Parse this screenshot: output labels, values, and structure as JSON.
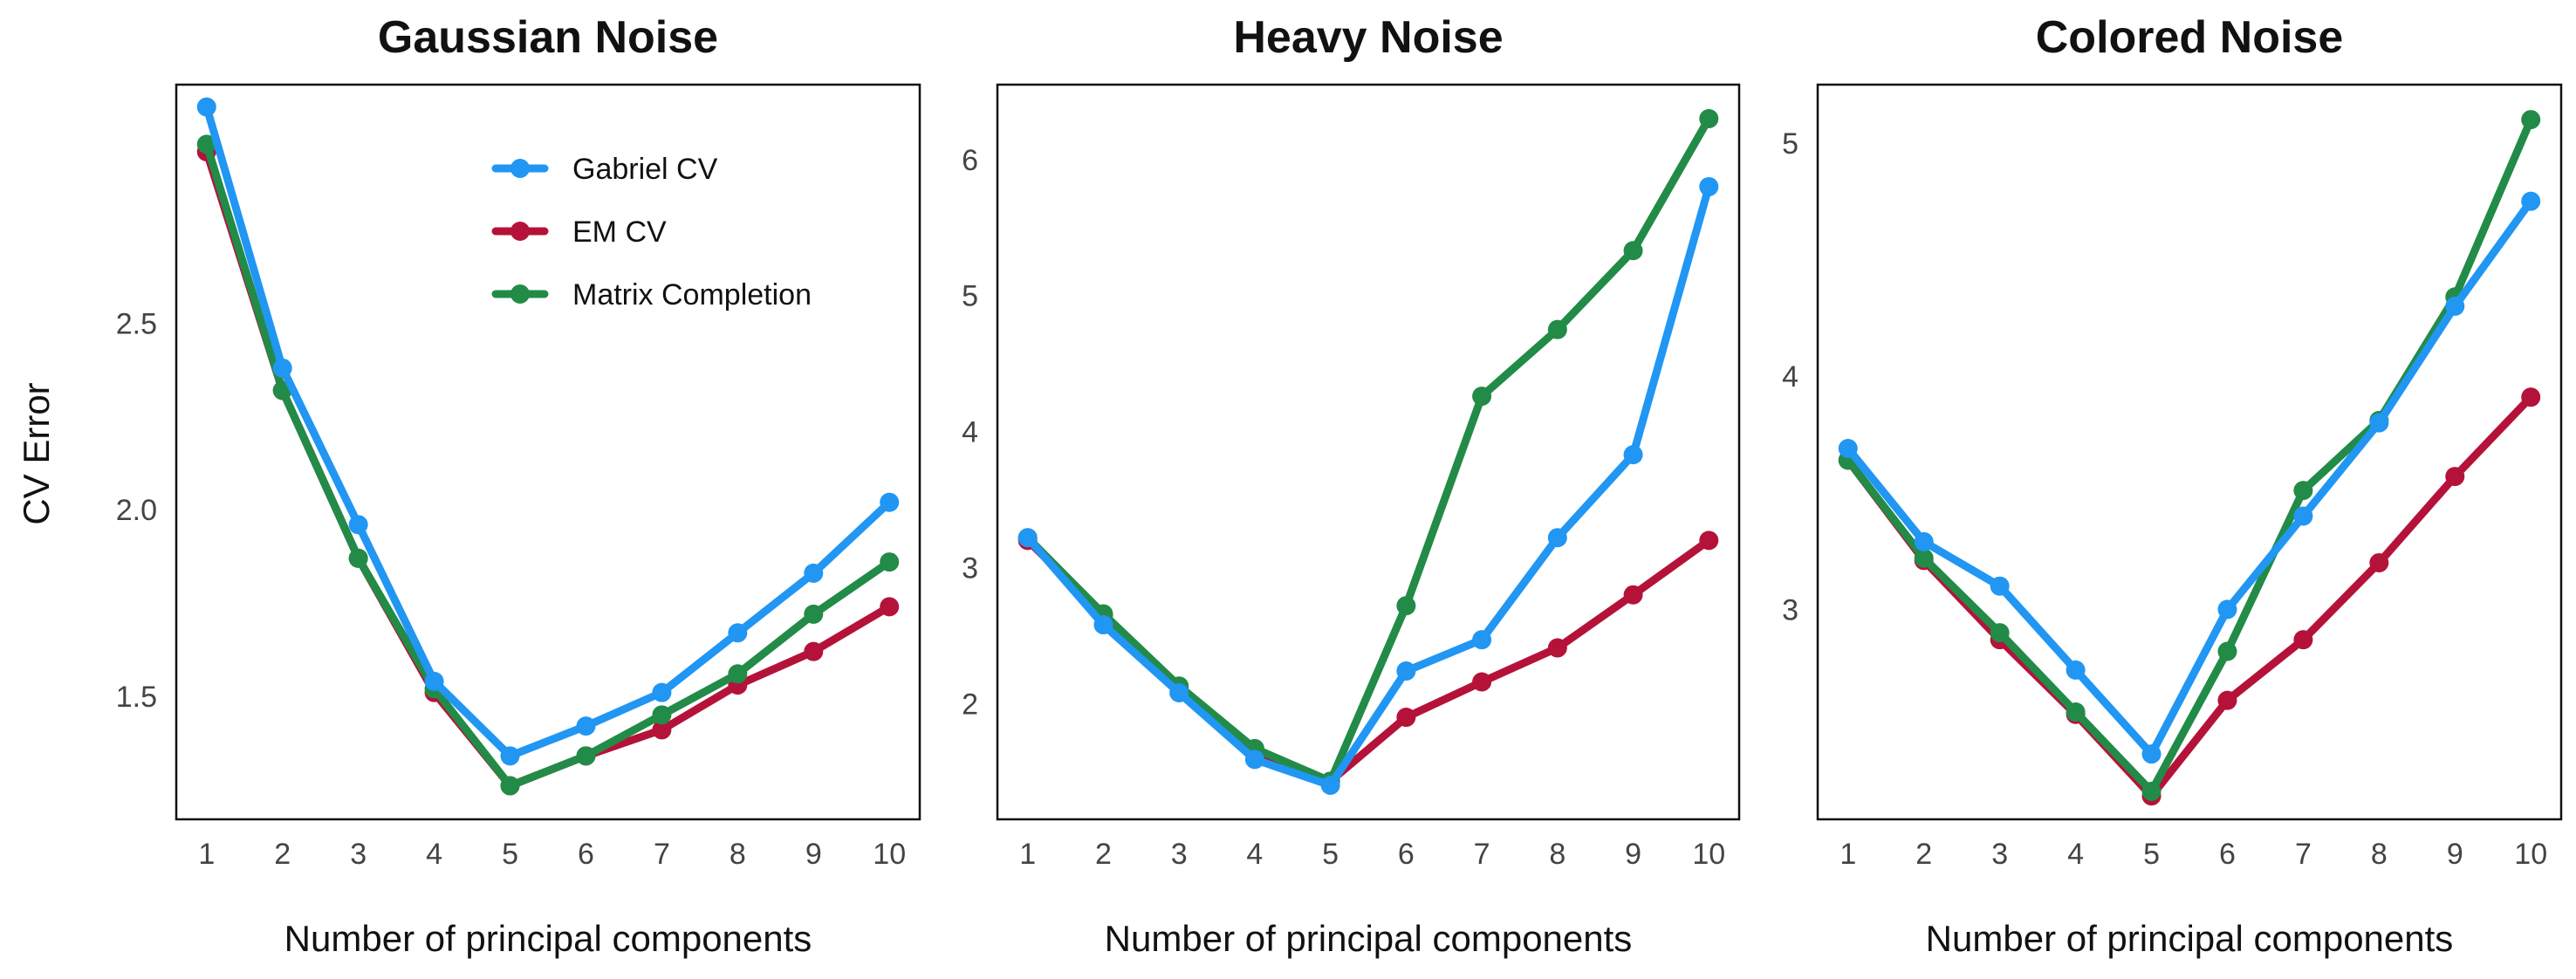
{
  "figure": {
    "ylabel": "CV Error",
    "legend": {
      "placement": "top-right",
      "entries": [
        {
          "name": "Gabriel CV",
          "color": "#2196F3"
        },
        {
          "name": "EM CV",
          "color": "#B5123A"
        },
        {
          "name": "Matrix Completion",
          "color": "#228B47"
        }
      ]
    }
  },
  "chart_data": [
    {
      "type": "line",
      "title": "Gaussian Noise",
      "xlabel": "Number of principal components",
      "ylabel": "CV Error",
      "xlim": [
        0.6,
        10.4
      ],
      "ylim": [
        1.17,
        3.14
      ],
      "x": [
        1,
        2,
        3,
        4,
        5,
        6,
        7,
        8,
        9,
        10
      ],
      "yticks": [
        1.5,
        2.0,
        2.5
      ],
      "ytick_labels": [
        "1.5",
        "2.0",
        "2.5"
      ],
      "grid": false,
      "series": [
        {
          "name": "Gabriel CV",
          "color": "#2196F3",
          "values": [
            3.08,
            2.38,
            1.96,
            1.54,
            1.34,
            1.42,
            1.51,
            1.67,
            1.83,
            2.02
          ]
        },
        {
          "name": "EM CV",
          "color": "#B5123A",
          "values": [
            2.96,
            2.32,
            1.87,
            1.51,
            1.26,
            1.34,
            1.41,
            1.53,
            1.62,
            1.74
          ]
        },
        {
          "name": "Matrix Completion",
          "color": "#228B47",
          "values": [
            2.98,
            2.32,
            1.87,
            1.52,
            1.26,
            1.34,
            1.45,
            1.56,
            1.72,
            1.86
          ]
        }
      ]
    },
    {
      "type": "line",
      "title": "Heavy Noise",
      "xlabel": "Number of principal components",
      "ylabel": "",
      "xlim": [
        0.6,
        10.4
      ],
      "ylim": [
        1.15,
        6.55
      ],
      "x": [
        1,
        2,
        3,
        4,
        5,
        6,
        7,
        8,
        9,
        10
      ],
      "yticks": [
        2,
        3,
        4,
        5,
        6
      ],
      "ytick_labels": [
        "2",
        "3",
        "4",
        "5",
        "6"
      ],
      "grid": false,
      "series": [
        {
          "name": "Gabriel CV",
          "color": "#2196F3",
          "values": [
            3.22,
            2.58,
            2.08,
            1.59,
            1.4,
            2.24,
            2.47,
            3.22,
            3.83,
            5.8
          ]
        },
        {
          "name": "EM CV",
          "color": "#B5123A",
          "values": [
            3.2,
            2.65,
            2.12,
            1.64,
            1.43,
            1.9,
            2.16,
            2.41,
            2.8,
            3.2
          ]
        },
        {
          "name": "Matrix Completion",
          "color": "#228B47",
          "values": [
            3.22,
            2.66,
            2.13,
            1.67,
            1.43,
            2.72,
            4.26,
            4.75,
            5.33,
            6.3
          ]
        }
      ]
    },
    {
      "type": "line",
      "title": "Colored Noise",
      "xlabel": "Number of principal components",
      "ylabel": "",
      "xlim": [
        0.6,
        10.4
      ],
      "ylim": [
        2.1,
        5.25
      ],
      "x": [
        1,
        2,
        3,
        4,
        5,
        6,
        7,
        8,
        9,
        10
      ],
      "yticks": [
        3,
        4,
        5
      ],
      "ytick_labels": [
        "3",
        "4",
        "5"
      ],
      "grid": false,
      "series": [
        {
          "name": "Gabriel CV",
          "color": "#2196F3",
          "values": [
            3.69,
            3.29,
            3.1,
            2.74,
            2.38,
            3.0,
            3.4,
            3.8,
            4.3,
            4.75
          ]
        },
        {
          "name": "EM CV",
          "color": "#B5123A",
          "values": [
            3.64,
            3.21,
            2.87,
            2.55,
            2.2,
            2.61,
            2.87,
            3.2,
            3.57,
            3.91
          ]
        },
        {
          "name": "Matrix Completion",
          "color": "#228B47",
          "values": [
            3.64,
            3.22,
            2.9,
            2.56,
            2.22,
            2.82,
            3.51,
            3.81,
            4.34,
            5.1
          ]
        }
      ]
    }
  ]
}
